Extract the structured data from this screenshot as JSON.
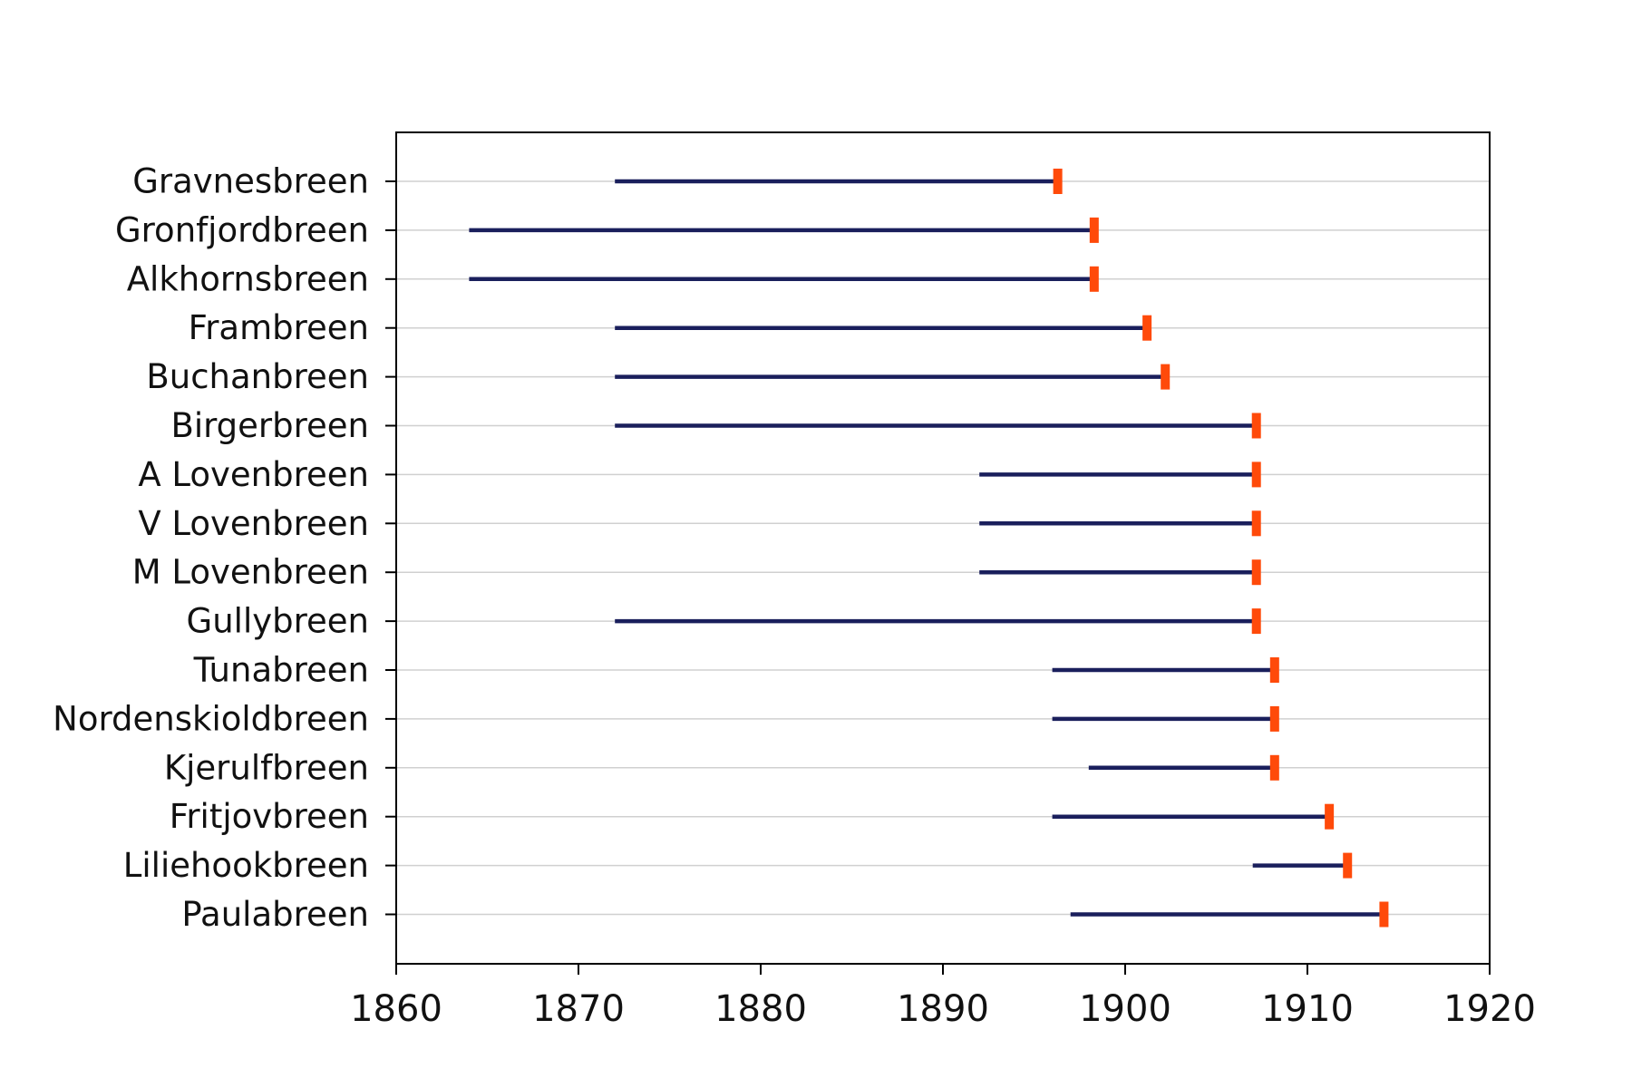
{
  "chart_data": {
    "type": "bar",
    "subtype": "horizontal-range",
    "categories": [
      "Gravnesbreen",
      "Gronfjordbreen",
      "Alkhornsbreen",
      "Frambreen",
      "Buchanbreen",
      "Birgerbreen",
      "A Lovenbreen",
      "V Lovenbreen",
      "M Lovenbreen",
      "Gullybreen",
      "Tunabreen",
      "Nordenskioldbreen",
      "Kjerulfbreen",
      "Fritjovbreen",
      "Liliehookbreen",
      "Paulabreen"
    ],
    "series": [
      {
        "values": [
          1872,
          1864,
          1864,
          1872,
          1872,
          1872,
          1892,
          1892,
          1892,
          1872,
          1896,
          1896,
          1898,
          1896,
          1907,
          1897
        ]
      },
      {
        "values": [
          1896.3,
          1898.3,
          1898.3,
          1901.2,
          1902.2,
          1907.2,
          1907.2,
          1907.2,
          1907.2,
          1907.2,
          1908.2,
          1908.2,
          1908.2,
          1911.2,
          1912.2,
          1914.2
        ]
      }
    ],
    "xlim": [
      1860,
      1920
    ],
    "xticks": [
      1860,
      1870,
      1880,
      1890,
      1900,
      1910,
      1920
    ],
    "title": "",
    "xlabel": "",
    "ylabel": "",
    "grid": "horizontal",
    "colors": {
      "line": "#1a1f5c",
      "marker": "#ff4a0a",
      "grid": "#d0d0d0",
      "axis": "#000000"
    }
  }
}
